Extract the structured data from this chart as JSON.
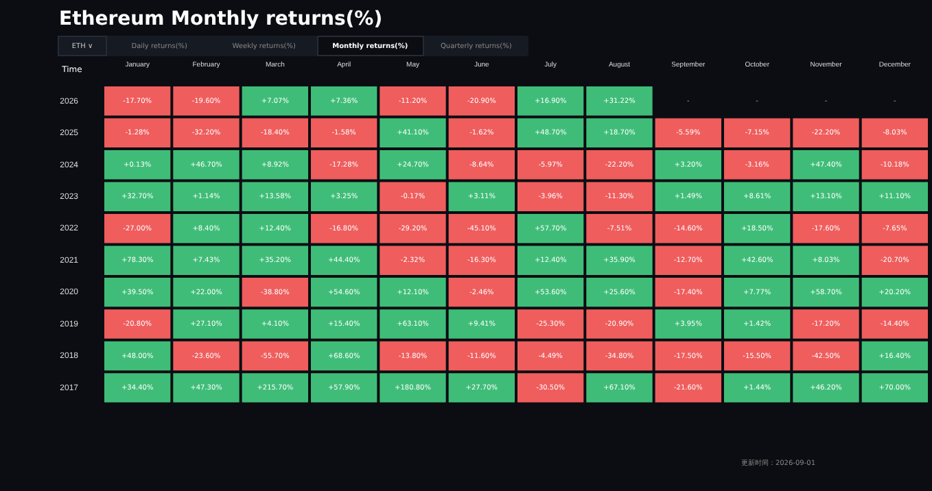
{
  "chart_data": {
    "type": "heatmap",
    "title": "Ethereum Monthly returns(%)",
    "ylabel": "Time",
    "categories": [
      "January",
      "February",
      "March",
      "April",
      "May",
      "June",
      "July",
      "August",
      "September",
      "October",
      "November",
      "December"
    ],
    "y_categories": [
      "2026",
      "2025",
      "2024",
      "2023",
      "2022",
      "2021",
      "2020",
      "2019",
      "2018",
      "2017"
    ],
    "cells": [
      [
        -17.7,
        -19.6,
        7.07,
        7.36,
        -11.2,
        -20.9,
        16.9,
        31.22,
        null,
        null,
        null,
        null
      ],
      [
        -1.28,
        -32.2,
        -18.4,
        -1.58,
        41.1,
        -1.62,
        48.7,
        18.7,
        -5.59,
        -7.15,
        -22.2,
        -8.03
      ],
      [
        0.13,
        46.7,
        8.92,
        -17.28,
        24.7,
        -8.64,
        -5.97,
        -22.2,
        3.2,
        -3.16,
        47.4,
        -10.18
      ],
      [
        32.7,
        1.14,
        13.58,
        3.25,
        -0.17,
        3.11,
        -3.96,
        -11.3,
        1.49,
        8.61,
        13.1,
        11.1
      ],
      [
        -27.0,
        8.4,
        12.4,
        -16.8,
        -29.2,
        -45.1,
        57.7,
        -7.51,
        -14.6,
        18.5,
        -17.6,
        -7.65
      ],
      [
        78.3,
        7.43,
        35.2,
        44.4,
        -2.32,
        -16.3,
        12.4,
        35.9,
        -12.7,
        42.6,
        8.03,
        -20.7
      ],
      [
        39.5,
        22.0,
        -38.8,
        54.6,
        12.1,
        -2.46,
        53.6,
        25.6,
        -17.4,
        7.77,
        58.7,
        20.2
      ],
      [
        -20.8,
        27.1,
        4.1,
        15.4,
        63.1,
        9.41,
        -25.3,
        -20.9,
        3.95,
        1.42,
        -17.2,
        -14.4
      ],
      [
        48.0,
        -23.6,
        -55.7,
        68.6,
        -13.8,
        -11.6,
        -4.49,
        -34.8,
        -17.5,
        -15.5,
        -42.5,
        16.4
      ],
      [
        34.4,
        47.3,
        215.7,
        57.9,
        180.8,
        27.7,
        -30.5,
        67.1,
        -21.6,
        1.44,
        46.2,
        70.0
      ]
    ],
    "cell_labels": [
      [
        "-17.70%",
        "-19.60%",
        "+7.07%",
        "+7.36%",
        "-11.20%",
        "-20.90%",
        "+16.90%",
        "+31.22%",
        "-",
        "-",
        "-",
        "-"
      ],
      [
        "-1.28%",
        "-32.20%",
        "-18.40%",
        "-1.58%",
        "+41.10%",
        "-1.62%",
        "+48.70%",
        "+18.70%",
        "-5.59%",
        "-7.15%",
        "-22.20%",
        "-8.03%"
      ],
      [
        "+0.13%",
        "+46.70%",
        "+8.92%",
        "-17.28%",
        "+24.70%",
        "-8.64%",
        "-5.97%",
        "-22.20%",
        "+3.20%",
        "-3.16%",
        "+47.40%",
        "-10.18%"
      ],
      [
        "+32.70%",
        "+1.14%",
        "+13.58%",
        "+3.25%",
        "-0.17%",
        "+3.11%",
        "-3.96%",
        "-11.30%",
        "+1.49%",
        "+8.61%",
        "+13.10%",
        "+11.10%"
      ],
      [
        "-27.00%",
        "+8.40%",
        "+12.40%",
        "-16.80%",
        "-29.20%",
        "-45.10%",
        "+57.70%",
        "-7.51%",
        "-14.60%",
        "+18.50%",
        "-17.60%",
        "-7.65%"
      ],
      [
        "+78.30%",
        "+7.43%",
        "+35.20%",
        "+44.40%",
        "-2.32%",
        "-16.30%",
        "+12.40%",
        "+35.90%",
        "-12.70%",
        "+42.60%",
        "+8.03%",
        "-20.70%"
      ],
      [
        "+39.50%",
        "+22.00%",
        "-38.80%",
        "+54.60%",
        "+12.10%",
        "-2.46%",
        "+53.60%",
        "+25.60%",
        "-17.40%",
        "+7.77%",
        "+58.70%",
        "+20.20%"
      ],
      [
        "-20.80%",
        "+27.10%",
        "+4.10%",
        "+15.40%",
        "+63.10%",
        "+9.41%",
        "-25.30%",
        "-20.90%",
        "+3.95%",
        "+1.42%",
        "-17.20%",
        "-14.40%"
      ],
      [
        "+48.00%",
        "-23.60%",
        "-55.70%",
        "+68.60%",
        "-13.80%",
        "-11.60%",
        "-4.49%",
        "-34.80%",
        "-17.50%",
        "-15.50%",
        "-42.50%",
        "+16.40%"
      ],
      [
        "+34.40%",
        "+47.30%",
        "+215.70%",
        "+57.90%",
        "+180.80%",
        "+27.70%",
        "-30.50%",
        "+67.10%",
        "-21.60%",
        "+1.44%",
        "+46.20%",
        "+70.00%"
      ]
    ],
    "colors": [
      "#3fbd78",
      "#ef5d5d"
    ],
    "annotations": [
      "ETH ∨",
      "Daily returns(%)",
      "Weekly returns(%)",
      "Monthly returns(%)",
      "Quarterly returns(%)",
      "更新时间：2026-09-01"
    ]
  }
}
